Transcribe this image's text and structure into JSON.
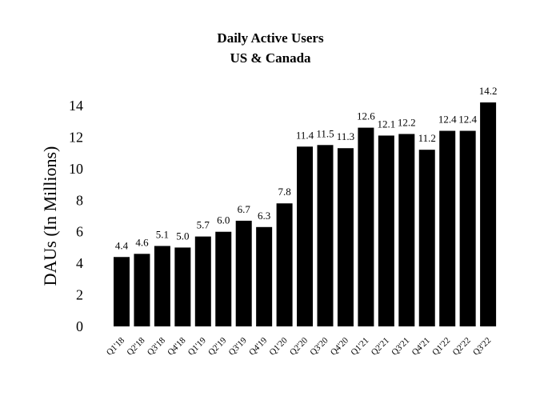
{
  "chart_data": {
    "type": "bar",
    "title": "Daily Active Users",
    "subtitle": "US & Canada",
    "xlabel": "",
    "ylabel": "DAUs (In Millions)",
    "ylim": [
      0,
      14
    ],
    "yticks": [
      "0",
      "2",
      "4",
      "6",
      "8",
      "10",
      "12",
      "14"
    ],
    "categories": [
      "Q1'18",
      "Q2'18",
      "Q3'18",
      "Q4'18",
      "Q1'19",
      "Q2'19",
      "Q3'19",
      "Q4'19",
      "Q1'20",
      "Q2'20",
      "Q3'20",
      "Q4'20",
      "Q1'21",
      "Q2'21",
      "Q3'21",
      "Q4'21",
      "Q1'22",
      "Q2'22",
      "Q3'22"
    ],
    "values": [
      4.4,
      4.6,
      5.1,
      5.0,
      5.7,
      6.0,
      6.7,
      6.3,
      7.8,
      11.4,
      11.5,
      11.3,
      12.6,
      12.1,
      12.2,
      11.2,
      12.4,
      12.4,
      14.2
    ],
    "value_labels": [
      "4.4",
      "4.6",
      "5.1",
      "5.0",
      "5.7",
      "6.0",
      "6.7",
      "6.3",
      "7.8",
      "11.4",
      "11.5",
      "11.3",
      "12.6",
      "12.1",
      "12.2",
      "11.2",
      "12.4",
      "12.4",
      "14.2"
    ],
    "bar_color": "#000000",
    "grid": false,
    "legend": "none"
  }
}
